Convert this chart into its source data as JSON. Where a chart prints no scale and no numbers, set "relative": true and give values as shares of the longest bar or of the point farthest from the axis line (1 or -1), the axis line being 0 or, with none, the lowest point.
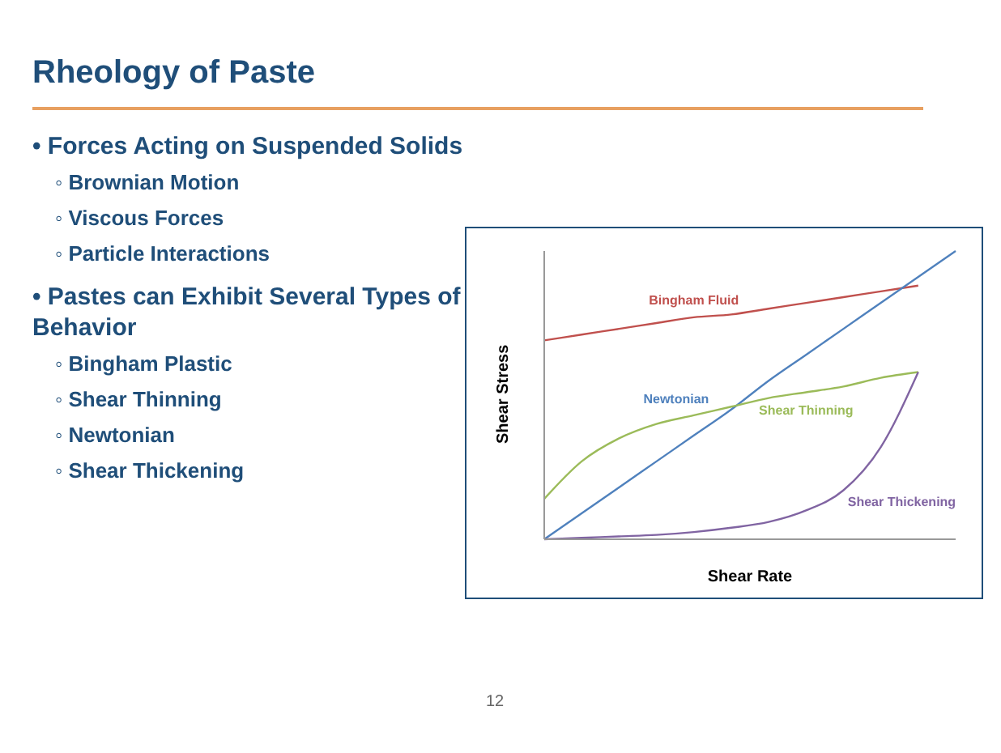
{
  "chart_data": {
    "type": "line",
    "title": "Rheology of Paste",
    "xlabel": "Shear Rate",
    "ylabel": "Shear Stress",
    "relative": true,
    "marker": "none",
    "categories": [
      null,
      null,
      null,
      null,
      null,
      null,
      null,
      null,
      null,
      null,
      null,
      null
    ],
    "series": [
      {
        "name": "Bingham Fluid",
        "color": "#c0504d",
        "values": [
          0.69,
          0.71,
          0.73,
          0.75,
          0.77,
          0.78,
          0.8,
          0.82,
          0.84,
          0.86,
          0.88,
          null
        ]
      },
      {
        "name": "Newtonian",
        "color": "#4f81bd",
        "values": [
          0,
          0.09,
          0.18,
          0.27,
          0.36,
          0.45,
          0.55,
          0.64,
          0.73,
          0.82,
          0.91,
          1
        ]
      },
      {
        "name": "Shear Thinning",
        "color": "#9bbb59",
        "values": [
          0.14,
          0.27,
          0.35,
          0.4,
          0.43,
          0.46,
          0.49,
          0.51,
          0.53,
          0.56,
          0.58,
          null
        ]
      },
      {
        "name": "Shear Thickening",
        "color": "#8064a2",
        "values": [
          0,
          0.005,
          0.01,
          0.015,
          0.025,
          0.04,
          0.06,
          0.1,
          0.17,
          0.32,
          0.58,
          null
        ]
      }
    ],
    "annotations": [
      "• Forces Acting on Suspended Solids",
      "◦ Brownian Motion",
      "◦ Viscous Forces",
      "◦ Particle Interactions",
      "• Pastes can Exhibit Several Types of Behavior",
      "◦ Bingham Plastic",
      "◦ Shear Thinning",
      "◦ Newtonian",
      "◦ Shear Thickening",
      "12"
    ]
  }
}
